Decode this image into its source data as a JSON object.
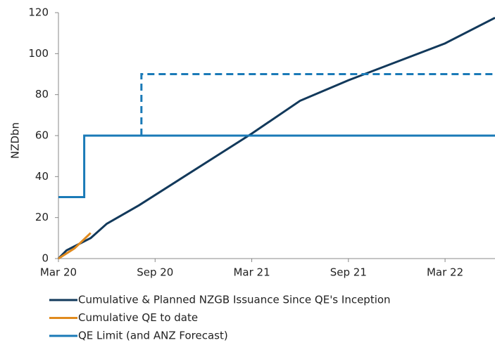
{
  "chart_data": {
    "type": "line",
    "y_label": "NZDbn",
    "xlim": [
      0,
      27.1
    ],
    "ylim": [
      0,
      120
    ],
    "xticks": [
      {
        "value": 0,
        "label": "Mar 20"
      },
      {
        "value": 6,
        "label": "Sep 20"
      },
      {
        "value": 12,
        "label": "Mar 21"
      },
      {
        "value": 18,
        "label": "Sep 21"
      },
      {
        "value": 24,
        "label": "Mar 22"
      }
    ],
    "yticks": [
      0,
      20,
      40,
      60,
      80,
      100,
      120
    ],
    "grid": false,
    "legend": "bottom",
    "series": [
      {
        "name": "Cumulative & Planned NZGB Issuance Since QE's Inception",
        "color": "#12395b",
        "x": [
          0,
          0.5,
          1,
          2,
          3,
          5,
          10,
          12,
          15,
          18,
          24,
          27.1
        ],
        "values": [
          0,
          4,
          6,
          10,
          17,
          26,
          51,
          61,
          77,
          87,
          105,
          117.5
        ]
      },
      {
        "name": "Cumulative QE to date",
        "color": "#e08a1e",
        "x": [
          0,
          1,
          2
        ],
        "values": [
          0,
          5,
          12.5
        ]
      },
      {
        "name": "QE Limit (and ANZ Forecast)",
        "color": "#1a7ab7",
        "x": [
          0,
          1.6,
          1.6,
          27.1
        ],
        "values": [
          30,
          30,
          60,
          60
        ]
      },
      {
        "color": "#1a7ab7",
        "dashed": true,
        "x": [
          5.15,
          5.15,
          27.1
        ],
        "values": [
          60,
          90,
          90
        ]
      }
    ]
  }
}
